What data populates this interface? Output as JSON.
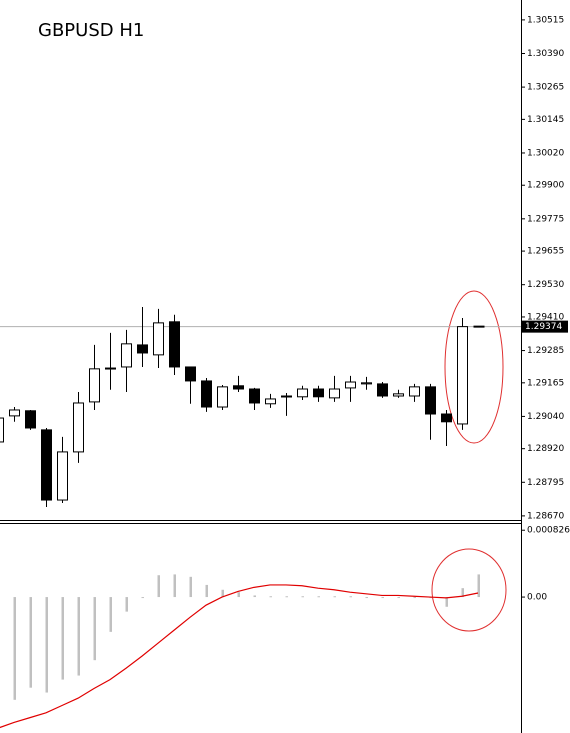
{
  "chart_data": [
    {
      "type": "candlestick",
      "title": "GBPUSD H1",
      "categories": [
        null,
        null,
        null,
        null,
        null,
        null,
        null,
        null,
        null,
        null,
        null,
        null,
        null,
        null,
        null,
        null,
        null,
        null,
        null,
        null,
        null,
        null,
        null,
        null,
        null,
        null,
        null,
        null,
        null,
        null,
        null
      ],
      "open": [
        1.28945,
        1.29042,
        1.29061,
        1.2899,
        1.28729,
        1.28908,
        1.29094,
        1.2922,
        1.29224,
        1.29306,
        1.29269,
        1.29392,
        1.29224,
        1.29172,
        1.29075,
        1.29154,
        1.29142,
        1.29087,
        1.29113,
        1.29113,
        1.29142,
        1.29109,
        1.29146,
        1.29161,
        1.29161,
        1.29116,
        1.29116,
        1.2915,
        1.29049,
        1.29012,
        1.29374
      ],
      "high": [
        1.29057,
        1.29075,
        1.29064,
        1.28997,
        1.28964,
        1.29131,
        1.29306,
        1.29351,
        1.29362,
        1.29447,
        1.2944,
        1.29418,
        1.29224,
        1.29183,
        1.29157,
        1.29191,
        1.29146,
        1.29124,
        1.29127,
        1.29154,
        1.29154,
        1.29191,
        1.29191,
        1.29187,
        1.29168,
        1.29139,
        1.29161,
        1.29161,
        1.29064,
        1.29406,
        1.29374
      ],
      "low": [
        1.2893,
        1.2902,
        1.2899,
        1.28703,
        1.28718,
        1.28867,
        1.29064,
        1.29139,
        1.29131,
        1.29224,
        1.2922,
        1.29194,
        1.29087,
        1.29057,
        1.29064,
        1.29131,
        1.29064,
        1.29072,
        1.29042,
        1.29101,
        1.29094,
        1.29094,
        1.29094,
        1.29139,
        1.29109,
        1.29109,
        1.29094,
        1.28953,
        1.2893,
        1.2899,
        1.29374
      ],
      "close": [
        1.29034,
        1.29064,
        1.28997,
        1.28729,
        1.28908,
        1.2909,
        1.29217,
        1.29217,
        1.2931,
        1.29276,
        1.29388,
        1.29224,
        1.29172,
        1.29075,
        1.2915,
        1.29142,
        1.2909,
        1.29105,
        1.29116,
        1.29142,
        1.29113,
        1.29142,
        1.29168,
        1.29165,
        1.29116,
        1.29124,
        1.2915,
        1.29049,
        1.2902,
        1.29374,
        1.29374
      ],
      "ylim": [
        1.28651,
        1.30589
      ],
      "yticks": [
        1.30515,
        {
          "value": 1.3039,
          "label": "1.30390"
        },
        1.30265,
        1.30145,
        {
          "value": 1.3002,
          "label": "1.30020"
        },
        {
          "value": 1.299,
          "label": "1.29900"
        },
        1.29775,
        1.29655,
        {
          "value": 1.2953,
          "label": "1.29530"
        },
        {
          "value": 1.2941,
          "label": "1.29410"
        },
        1.29285,
        1.29165,
        {
          "value": 1.2904,
          "label": "1.29040"
        },
        {
          "value": 1.2892,
          "label": "1.28920"
        },
        1.28795,
        {
          "value": 1.2867,
          "label": "1.28670"
        }
      ],
      "current_price": {
        "value": 1.29374,
        "label": "1.29374"
      }
    },
    {
      "type": "histogram",
      "series": [
        {
          "type": "bar",
          "color": "#c0c0c0",
          "values": [
            -0.00127,
            -0.00127,
            -0.00112,
            -0.00118,
            -0.00102,
            -0.00097,
            -0.00078,
            -0.00043,
            -0.00018,
            -1e-05,
            0.00027,
            0.00028,
            0.00025,
            0.00015,
            9e-05,
            6e-05,
            2e-05,
            1e-05,
            1e-05,
            1e-05,
            1e-05,
            1e-05,
            1e-05,
            -1e-05,
            -1e-05,
            -1e-05,
            -1e-05,
            -1e-05,
            -0.00012,
            0.00011,
            0.00028
          ]
        },
        {
          "type": "line",
          "color": "#e00000",
          "values": [
            -0.00162,
            -0.00155,
            -0.00149,
            -0.00143,
            -0.00134,
            -0.00125,
            -0.00113,
            -0.00102,
            -0.00088,
            -0.00073,
            -0.00057,
            -0.00041,
            -0.00025,
            -0.0001,
            0,
            7e-05,
            0.00012,
            0.00015,
            0.00015,
            0.00014,
            0.00011,
            9e-05,
            6e-05,
            4e-05,
            2e-05,
            2e-05,
            1e-05,
            0,
            -1e-05,
            1e-05,
            5e-05
          ]
        }
      ],
      "ylim": [
        -0.00168,
        0.00094
      ],
      "yticks": [
        {
          "value": 0.000826,
          "label": "0.000826"
        },
        {
          "value": 0,
          "label": "0.00"
        }
      ]
    }
  ]
}
